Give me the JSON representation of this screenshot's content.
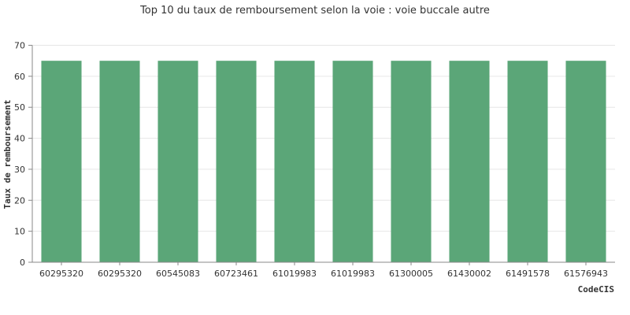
{
  "chart_data": {
    "type": "bar",
    "title": "Top 10 du taux de remboursement selon la voie : voie buccale autre",
    "xlabel": "CodeCIS",
    "ylabel": "Taux de remboursement",
    "categories": [
      "60295320",
      "60295320",
      "60545083",
      "60723461",
      "61019983",
      "61019983",
      "61300005",
      "61430002",
      "61491578",
      "61576943"
    ],
    "values": [
      65,
      65,
      65,
      65,
      65,
      65,
      65,
      65,
      65,
      65
    ],
    "ylim": [
      0,
      70
    ],
    "yticks": [
      "0",
      "10",
      "20",
      "30",
      "40",
      "50",
      "60",
      "70"
    ],
    "grid": true,
    "legend": "none",
    "bar_color": "#5ba678"
  }
}
